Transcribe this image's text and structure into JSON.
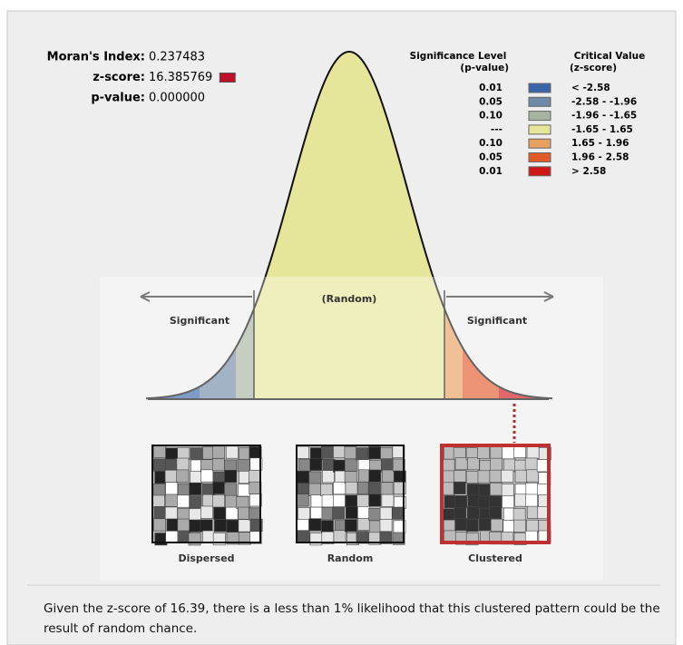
{
  "stats": [
    {
      "label": "Moran's Index:",
      "value": "0.237483"
    },
    {
      "label": "z-score:",
      "value": "16.385769",
      "swatch_color": "#c0102a"
    },
    {
      "label": "p-value:",
      "value": "0.000000"
    }
  ],
  "legend": {
    "p_header": [
      "Significance Level",
      "(p-value)"
    ],
    "z_header": [
      "Critical Value",
      "(z-score)"
    ],
    "rows": [
      {
        "p": "0.01",
        "color": "#3a64a8",
        "z": "< -2.58"
      },
      {
        "p": "0.05",
        "color": "#6f8aa6",
        "z": "-2.58 - -1.96"
      },
      {
        "p": "0.10",
        "color": "#a8b4a2",
        "z": "-1.96 - -1.65"
      },
      {
        "p": "---",
        "color": "#e6e69a",
        "z": "-1.65 - 1.65"
      },
      {
        "p": "0.10",
        "color": "#e8a060",
        "z": "1.65 - 1.96"
      },
      {
        "p": "0.05",
        "color": "#e05a2a",
        "z": "1.96 - 2.58"
      },
      {
        "p": "0.01",
        "color": "#d01818",
        "z": "> 2.58"
      }
    ]
  },
  "curve": {
    "middle": "(Random)",
    "left": "Significant",
    "right": "Significant"
  },
  "patterns": [
    "Dispersed",
    "Random",
    "Clustered"
  ],
  "summary": "Given the z-score of 16.39, there is a less than 1% likelihood that this clustered pattern could be the result of random chance."
}
